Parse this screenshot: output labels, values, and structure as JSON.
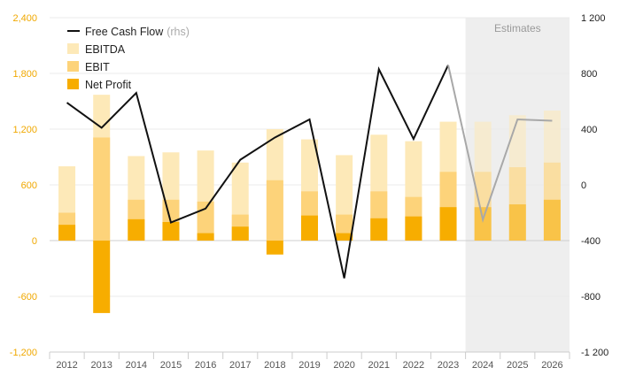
{
  "chart_data": {
    "type": "bar",
    "categories": [
      "2012",
      "2013",
      "2014",
      "2015",
      "2016",
      "2017",
      "2018",
      "2019",
      "2020",
      "2021",
      "2022",
      "2023",
      "2024",
      "2025",
      "2026"
    ],
    "series": [
      {
        "name": "EBITDA",
        "axis": "left",
        "color": "#fde9b8",
        "values": [
          800,
          1570,
          910,
          950,
          970,
          840,
          1200,
          1090,
          920,
          1140,
          1070,
          1280,
          1280,
          1350,
          1400
        ]
      },
      {
        "name": "EBIT",
        "axis": "left",
        "color": "#fdd37a",
        "values": [
          300,
          1110,
          440,
          440,
          420,
          280,
          650,
          530,
          280,
          530,
          470,
          740,
          740,
          790,
          840
        ]
      },
      {
        "name": "Net Profit",
        "axis": "left",
        "color": "#f7ad00",
        "values": [
          170,
          -780,
          230,
          200,
          80,
          150,
          -150,
          270,
          80,
          240,
          260,
          360,
          360,
          390,
          440
        ]
      },
      {
        "name": "Free Cash Flow",
        "name_suffix": "(rhs)",
        "axis": "right",
        "color": "#111111",
        "values": [
          590,
          410,
          660,
          -270,
          -170,
          180,
          340,
          470,
          -670,
          830,
          330,
          860,
          -250,
          470,
          460
        ]
      }
    ],
    "estimates": {
      "label": "Estimates",
      "from": "2024",
      "to": "2026",
      "color": "#eeeeee"
    },
    "y_left": {
      "ylim": [
        -1200,
        2400
      ],
      "ticks": [
        2400,
        1800,
        1200,
        600,
        0,
        -600,
        -1200
      ],
      "tick_labels": [
        "2,400",
        "1,800",
        "1,200",
        "600",
        "0",
        "-600",
        "-1,200"
      ],
      "color": "#f0a800"
    },
    "y_right": {
      "ylim": [
        -1200,
        1200
      ],
      "ticks": [
        1200,
        800,
        400,
        0,
        -400,
        -800,
        -1200
      ],
      "tick_labels": [
        "1 200",
        "800",
        "400",
        "0",
        "-400",
        "-800",
        "-1 200"
      ],
      "color": "#222222"
    },
    "legend": {
      "placement": "top-left",
      "order": [
        "Free Cash Flow",
        "EBITDA",
        "EBIT",
        "Net Profit"
      ]
    },
    "grid": true
  }
}
